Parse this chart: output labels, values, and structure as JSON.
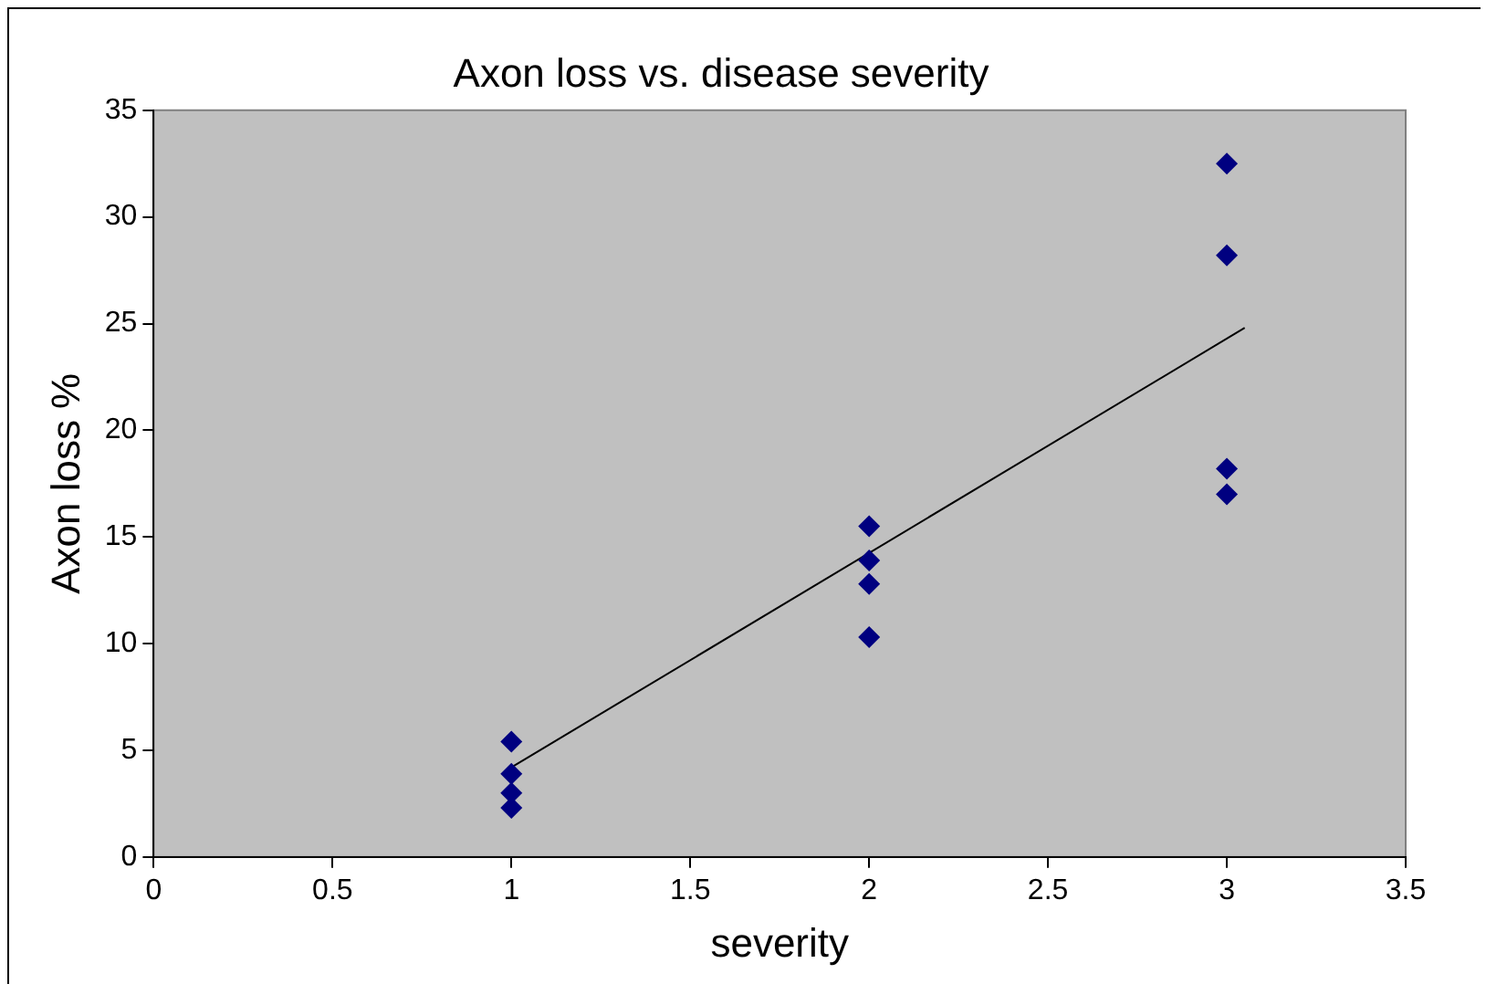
{
  "chart_data": {
    "type": "scatter",
    "title": "Axon loss vs. disease severity",
    "xlabel": "severity",
    "ylabel": "Axon loss %",
    "x": [
      1,
      1,
      1,
      1,
      2,
      2,
      2,
      2,
      3,
      3,
      3,
      3
    ],
    "series": [
      {
        "color": "#000080",
        "values": [
          5.4,
          3.9,
          3.0,
          2.3,
          15.5,
          13.9,
          12.8,
          10.3,
          32.5,
          28.2,
          18.2,
          17.0
        ]
      },
      {
        "type": "line",
        "color": "#000000",
        "x": [
          1,
          3.05
        ],
        "values": [
          4.2,
          24.8
        ],
        "marker": "none"
      }
    ],
    "xlim": [
      0,
      3.5
    ],
    "xticks": [
      0,
      0.5,
      1,
      1.5,
      2,
      2.5,
      3,
      3.5
    ],
    "ylim": [
      0,
      35
    ],
    "yticks": [
      0,
      5,
      10,
      15,
      20,
      25,
      30,
      35
    ],
    "marker": "diamond",
    "grid": false,
    "legend": false
  }
}
